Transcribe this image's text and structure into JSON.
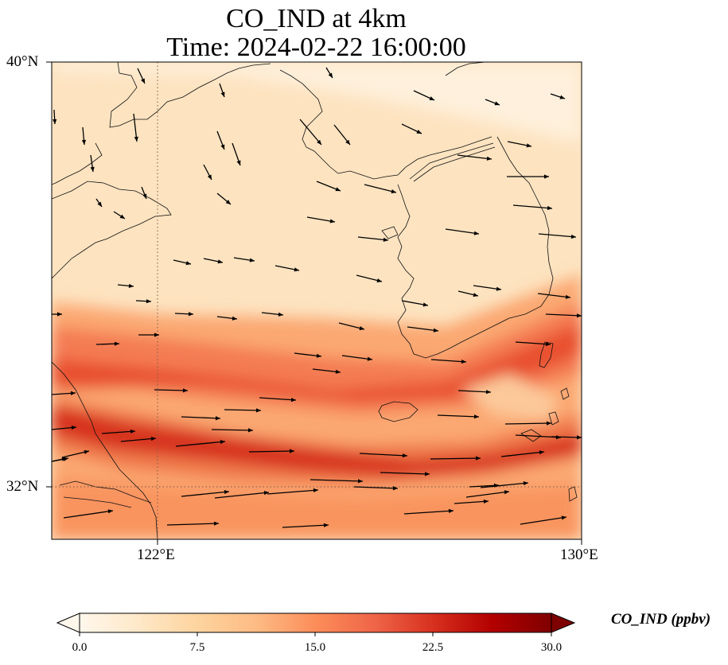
{
  "title": {
    "line1": "CO_IND at 4km",
    "line2": "Time: 2024-02-22 16:00:00"
  },
  "map": {
    "lon_range": [
      118.7,
      130
    ],
    "lat_range": [
      30.9,
      40
    ],
    "gridlines": {
      "lon": [
        122
      ],
      "lat": [
        32
      ],
      "style": "dotted"
    },
    "lon_ticks": [
      {
        "value": 122,
        "label": "122°E"
      },
      {
        "value": 130,
        "label": "130°E"
      }
    ],
    "lat_ticks": [
      {
        "value": 40,
        "label": "40°N"
      },
      {
        "value": 32,
        "label": "32°N"
      }
    ],
    "field": "CO_IND",
    "features": [
      "coastlines",
      "wind-vectors"
    ]
  },
  "colorbar": {
    "label": "CO_IND (ppbv)",
    "min": 0.0,
    "max": 30.0,
    "colormap": "OrRd",
    "extend": "both",
    "ticks": [
      "0.0",
      "7.5",
      "15.0",
      "22.5",
      "30.0"
    ],
    "colors": [
      "#fff7ec",
      "#fee8c8",
      "#fdd49e",
      "#fdbb84",
      "#fc8d59",
      "#ef6548",
      "#d7301f",
      "#b30000",
      "#7f0000"
    ]
  }
}
